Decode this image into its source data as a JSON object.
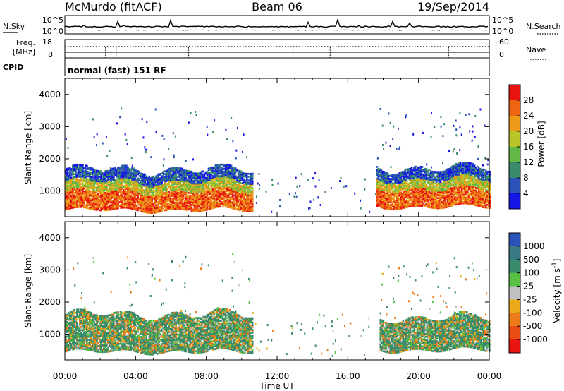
{
  "header": {
    "station": "McMurdo (fitACF)",
    "beam": "Beam 06",
    "date": "19/Sep/2014"
  },
  "noise_panel": {
    "left_label": "N.Sky",
    "right_label": "N.Search",
    "left_ticks": [
      "10^5",
      "10^0"
    ],
    "right_ticks": [
      "10^5",
      "10^0"
    ]
  },
  "freq_panel": {
    "left_label_1": "Freq.",
    "left_label_2": "[MHz]",
    "left_ticks": [
      "18",
      "8"
    ],
    "right_label": "Nave",
    "right_ticks": [
      "60",
      "0"
    ]
  },
  "cpid": {
    "label": "CPID",
    "value": "normal (fast) 151 RF"
  },
  "colors": {
    "power": [
      "#1515e6",
      "#2a52b8",
      "#3a8a6c",
      "#61b846",
      "#b9c62a",
      "#ec9a18",
      "#ef6413",
      "#e81410"
    ],
    "velocity": [
      "#2a52b8",
      "#3a7a86",
      "#3a8a6c",
      "#58c042",
      "#c0c0c0",
      "#ebaa18",
      "#ec7a18",
      "#ea4a14",
      "#e81410"
    ]
  },
  "chart_data": [
    {
      "type": "heatmap",
      "title": "",
      "quantity": "Power",
      "xlabel": "Time UT",
      "ylabel": "Slant Range [km]",
      "colorbar_label": "Power [dB]",
      "xlim_hours": [
        0,
        24
      ],
      "ylim_km": [
        200,
        4500
      ],
      "x_ticks": [
        "00:00",
        "04:00",
        "08:00",
        "12:00",
        "16:00",
        "20:00",
        "00:00"
      ],
      "y_ticks": [
        "1000",
        "2000",
        "3000",
        "4000"
      ],
      "colorbar_ticks": [
        "4",
        "8",
        "12",
        "16",
        "20",
        "24",
        "28"
      ],
      "colorbar_range": [
        0,
        30
      ],
      "scatter_regions": [
        {
          "t_start": 0.0,
          "t_end": 10.6,
          "r_low_km": 400,
          "r_high_km": 1650,
          "strong_low_km": 400,
          "strong_high_km": 1100
        },
        {
          "t_start": 17.6,
          "t_end": 24.0,
          "r_low_km": 500,
          "r_high_km": 1700,
          "strong_low_km": 500,
          "strong_high_km": 1150
        }
      ]
    },
    {
      "type": "heatmap",
      "title": "",
      "quantity": "Velocity",
      "xlabel": "Time UT",
      "ylabel": "Slant Range [km]",
      "colorbar_label": "Velocity [m s^-1]",
      "colorbar_label_main": "Velocity [m s",
      "colorbar_label_sup": "-1",
      "colorbar_label_end": "]",
      "xlim_hours": [
        0,
        24
      ],
      "ylim_km": [
        200,
        4500
      ],
      "x_ticks": [
        "00:00",
        "04:00",
        "08:00",
        "12:00",
        "16:00",
        "20:00",
        "00:00"
      ],
      "y_ticks": [
        "1000",
        "2000",
        "3000",
        "4000"
      ],
      "colorbar_ticks": [
        "1000",
        "500",
        "100",
        "25",
        "-25",
        "-100",
        "-500",
        "-1000"
      ],
      "colorbar_range": [
        -1000,
        1000
      ],
      "scatter_regions": [
        {
          "t_start": 0.0,
          "t_end": 10.6,
          "r_low_km": 450,
          "r_high_km": 1600
        },
        {
          "t_start": 17.8,
          "t_end": 24.0,
          "r_low_km": 500,
          "r_high_km": 1500
        }
      ]
    }
  ]
}
